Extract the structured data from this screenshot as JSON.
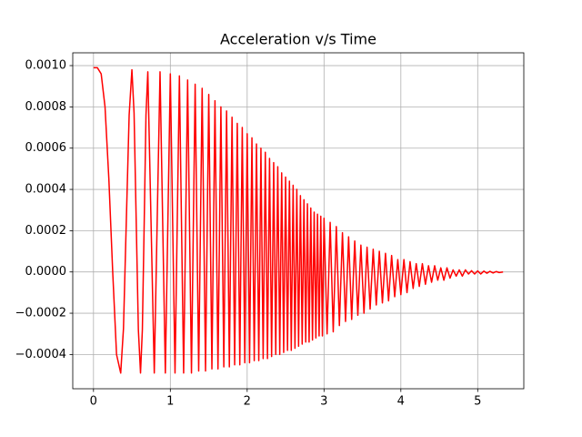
{
  "chart_data": {
    "type": "line",
    "title": "Acceleration v/s Time",
    "x": [
      0,
      0.05,
      0.1,
      0.15,
      0.2,
      0.25,
      0.3,
      0.354,
      0.39,
      0.427,
      0.464,
      0.5,
      0.528,
      0.556,
      0.584,
      0.612,
      0.636,
      0.66,
      0.683,
      0.707,
      0.791,
      0.866,
      0.935,
      1.0,
      1.061,
      1.118,
      1.173,
      1.225,
      1.275,
      1.323,
      1.369,
      1.414,
      1.458,
      1.5,
      1.541,
      1.581,
      1.62,
      1.658,
      1.696,
      1.732,
      1.768,
      1.803,
      1.837,
      1.871,
      1.904,
      1.936,
      1.969,
      2.0,
      2.031,
      2.062,
      2.092,
      2.121,
      2.151,
      2.179,
      2.208,
      2.236,
      2.264,
      2.291,
      2.318,
      2.345,
      2.372,
      2.398,
      2.424,
      2.449,
      2.475,
      2.5,
      2.525,
      2.55,
      2.574,
      2.598,
      2.622,
      2.646,
      2.669,
      2.693,
      2.716,
      2.739,
      2.762,
      2.784,
      2.806,
      2.828,
      2.85,
      2.872,
      2.894,
      2.915,
      2.936,
      2.958,
      2.979,
      3.0,
      3.04,
      3.08,
      3.12,
      3.16,
      3.2,
      3.24,
      3.28,
      3.32,
      3.36,
      3.4,
      3.44,
      3.48,
      3.52,
      3.56,
      3.6,
      3.64,
      3.68,
      3.72,
      3.76,
      3.8,
      3.84,
      3.88,
      3.92,
      3.96,
      4.0,
      4.04,
      4.08,
      4.12,
      4.16,
      4.2,
      4.24,
      4.28,
      4.32,
      4.36,
      4.4,
      4.44,
      4.48,
      4.52,
      4.56,
      4.6,
      4.64,
      4.68,
      4.72,
      4.76,
      4.8,
      4.84,
      4.88,
      4.92,
      4.96,
      5.0,
      5.04,
      5.08,
      5.12,
      5.16,
      5.2,
      5.24,
      5.28,
      5.33
    ],
    "series": [
      {
        "color": "#ff0000",
        "values": [
          0.00099,
          0.00099,
          0.00096,
          0.0008,
          0.00045,
          0,
          -0.0004,
          -0.00049,
          -0.000275,
          0.000245,
          0.00076,
          0.00098,
          0.00077,
          0.000245,
          -0.00028,
          -0.00049,
          -0.00028,
          0.00024,
          0.00076,
          0.00097,
          -0.00049,
          0.00097,
          -0.00049,
          0.00096,
          -0.00049,
          0.00095,
          -0.00049,
          0.00093,
          -0.00049,
          0.00091,
          -0.00048,
          0.00089,
          -0.00048,
          0.00086,
          -0.00047,
          0.00083,
          -0.00047,
          0.0008,
          -0.00046,
          0.00078,
          -0.00046,
          0.00075,
          -0.00045,
          0.00072,
          -0.00045,
          0.0007,
          -0.00044,
          0.00067,
          -0.00044,
          0.00065,
          -0.00043,
          0.00062,
          -0.00043,
          0.0006,
          -0.00042,
          0.00058,
          -0.00042,
          0.00055,
          -0.00041,
          0.00053,
          -0.0004,
          0.00051,
          -0.0004,
          0.00048,
          -0.00039,
          0.00046,
          -0.00038,
          0.00044,
          -0.00038,
          0.00042,
          -0.00037,
          0.0004,
          -0.00036,
          0.00037,
          -0.00035,
          0.00035,
          -0.00034,
          0.00033,
          -0.00034,
          0.00031,
          -0.00033,
          0.00029,
          -0.00032,
          0.00028,
          -0.00031,
          0.00027,
          -0.00031,
          0.00026,
          -0.0003,
          0.00024,
          -0.00029,
          0.00022,
          -0.00026,
          0.00019,
          -0.00024,
          0.00017,
          -0.00023,
          0.00015,
          -0.00021,
          0.00013,
          -0.0002,
          0.00012,
          -0.00018,
          0.00011,
          -0.00016,
          0.0001,
          -0.00015,
          9e-05,
          -0.00014,
          8e-05,
          -0.00012,
          6e-05,
          -0.00011,
          6e-05,
          -0.0001,
          5e-05,
          -8e-05,
          4e-05,
          -7e-05,
          4e-05,
          -6e-05,
          3e-05,
          -5e-05,
          3e-05,
          -4e-05,
          2e-05,
          -4e-05,
          2e-05,
          -3e-05,
          1e-05,
          -2e-05,
          1e-05,
          -2e-05,
          1e-05,
          -1e-05,
          6e-06,
          -1e-05,
          5e-06,
          -1e-05,
          4e-06,
          -6e-06,
          3e-06,
          -5e-06,
          2e-06,
          -3e-06,
          0
        ]
      }
    ],
    "xlim": [
      -0.27,
      5.6
    ],
    "xticks": [
      0,
      1,
      2,
      3,
      4,
      5
    ],
    "ylim": [
      -0.000566,
      0.001062
    ],
    "yticks": [
      {
        "value": -0.0004,
        "label": "−0.0004"
      },
      {
        "value": -0.0002,
        "label": "−0.0002"
      },
      {
        "value": 0,
        "label": "0.0000"
      },
      {
        "value": 0.0002,
        "label": "0.0002"
      },
      {
        "value": 0.0004,
        "label": "0.0004"
      },
      {
        "value": 0.0006,
        "label": "0.0006"
      },
      {
        "value": 0.0008,
        "label": "0.0008"
      },
      {
        "value": 0.001,
        "label": "0.0010"
      }
    ],
    "grid": true
  }
}
